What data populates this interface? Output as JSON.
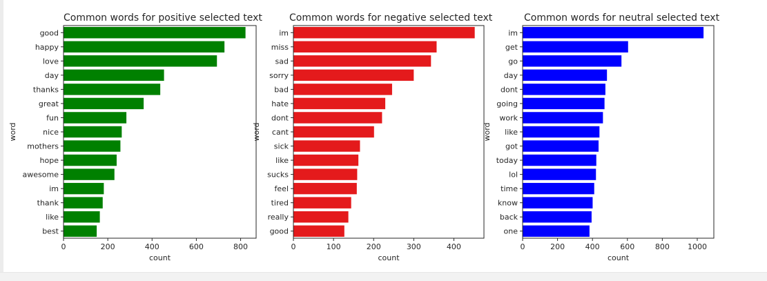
{
  "figure": {
    "charts_count": 3
  },
  "chart_data": [
    {
      "type": "bar",
      "orientation": "horizontal",
      "title": "Common words for positive selected text",
      "xlabel": "count",
      "ylabel": "word",
      "color": "#008000",
      "xlim": [
        0,
        870
      ],
      "xticks": [
        0,
        200,
        400,
        600,
        800
      ],
      "categories": [
        "good",
        "happy",
        "love",
        "day",
        "thanks",
        "great",
        "fun",
        "nice",
        "mothers",
        "hope",
        "awesome",
        "im",
        "thank",
        "like",
        "best"
      ],
      "values": [
        822,
        727,
        693,
        454,
        437,
        362,
        284,
        263,
        257,
        240,
        230,
        182,
        177,
        164,
        150
      ]
    },
    {
      "type": "bar",
      "orientation": "horizontal",
      "title": "Common words for negative  selected text",
      "xlabel": "count",
      "ylabel": "word",
      "color": "#e41a1c",
      "xlim": [
        0,
        475
      ],
      "xticks": [
        0,
        100,
        200,
        300,
        400
      ],
      "categories": [
        "im",
        "miss",
        "sad",
        "sorry",
        "bad",
        "hate",
        "dont",
        "cant",
        "sick",
        "like",
        "sucks",
        "feel",
        "tired",
        "really",
        "good"
      ],
      "values": [
        452,
        357,
        343,
        300,
        246,
        229,
        221,
        201,
        166,
        162,
        159,
        158,
        144,
        137,
        127
      ]
    },
    {
      "type": "bar",
      "orientation": "horizontal",
      "title": "Common words for neutral selected text",
      "xlabel": "count",
      "ylabel": "word",
      "color": "#0000ff",
      "xlim": [
        0,
        1095
      ],
      "xticks": [
        0,
        200,
        400,
        600,
        800,
        1000
      ],
      "categories": [
        "im",
        "get",
        "go",
        "day",
        "dont",
        "going",
        "work",
        "like",
        "got",
        "today",
        "lol",
        "time",
        "know",
        "back",
        "one"
      ],
      "values": [
        1036,
        604,
        566,
        483,
        474,
        469,
        460,
        440,
        435,
        422,
        420,
        410,
        401,
        395,
        383
      ]
    }
  ]
}
